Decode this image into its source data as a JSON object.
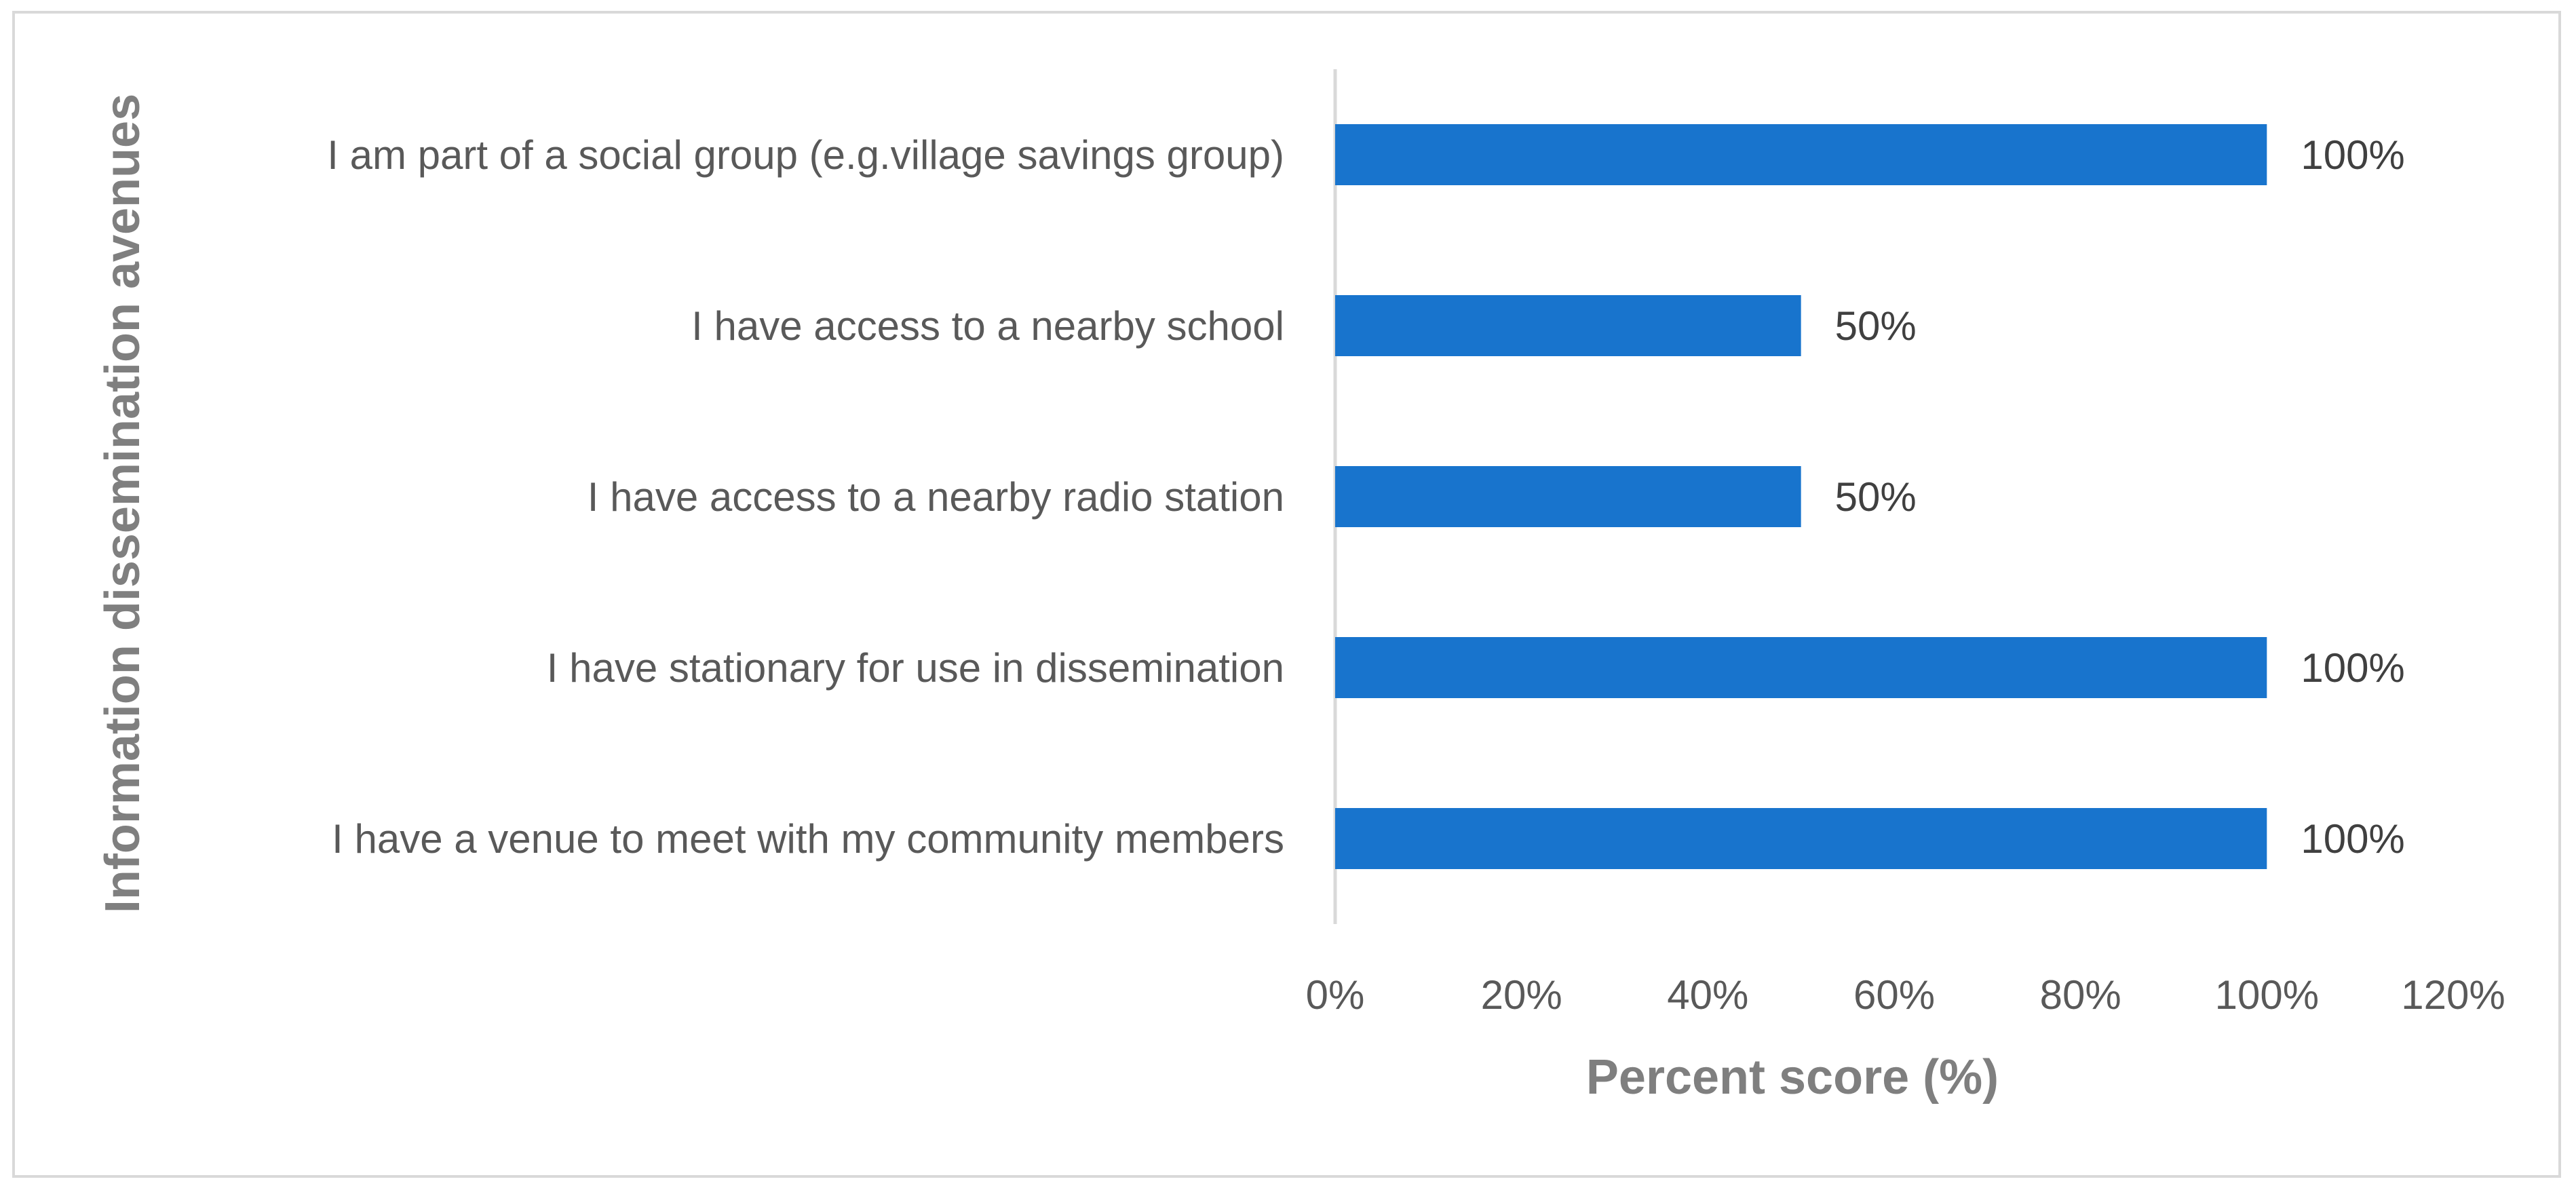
{
  "chart_data": {
    "type": "bar",
    "orientation": "horizontal",
    "categories": [
      "I am part of a social group (e.g.village savings group)",
      "I have access to a nearby school",
      "I have access to a nearby radio station",
      "I have stationary for use in dissemination",
      "I have a venue to meet with my community members"
    ],
    "values": [
      100,
      50,
      50,
      100,
      100
    ],
    "data_labels": [
      "100%",
      "50%",
      "50%",
      "100%",
      "100%"
    ],
    "xlabel": "Percent score (%)",
    "ylabel": "Information dissemination avenues",
    "xlim": [
      0,
      120
    ],
    "x_ticks": [
      0,
      20,
      40,
      60,
      80,
      100,
      120
    ],
    "x_tick_labels": [
      "0%",
      "20%",
      "40%",
      "60%",
      "80%",
      "100%",
      "120%"
    ],
    "bar_color": "#1874CD",
    "grid": false,
    "legend": "none"
  }
}
